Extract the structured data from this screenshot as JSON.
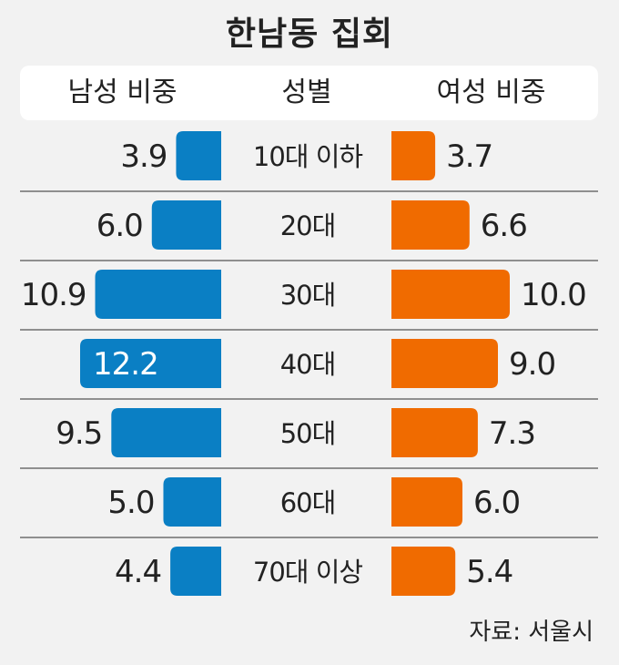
{
  "title": "한남동 집회",
  "header": {
    "left": "남성 비중",
    "middle": "성별",
    "right": "여성 비중"
  },
  "source": "자료: 서울시",
  "colors": {
    "male": "#0a7fc4",
    "female": "#f06b00",
    "divider": "#6e6e6e"
  },
  "chart_data": {
    "type": "bar",
    "categories": [
      "10대 이하",
      "20대",
      "30대",
      "40대",
      "50대",
      "60대",
      "70대 이상"
    ],
    "series": [
      {
        "name": "남성 비중",
        "values": [
          3.9,
          6.0,
          10.9,
          12.2,
          9.5,
          5.0,
          4.4
        ]
      },
      {
        "name": "여성 비중",
        "values": [
          3.7,
          6.6,
          10.0,
          9.0,
          7.3,
          6.0,
          5.4
        ]
      }
    ],
    "value_labels": {
      "male": [
        "3.9",
        "6.0",
        "10.9",
        "12.2",
        "9.5",
        "5.0",
        "4.4"
      ],
      "female": [
        "3.7",
        "6.6",
        "10.0",
        "9.0",
        "7.3",
        "6.0",
        "5.4"
      ]
    },
    "title": "한남동 집회",
    "xlabel": "",
    "ylabel": "",
    "legend": "top"
  }
}
